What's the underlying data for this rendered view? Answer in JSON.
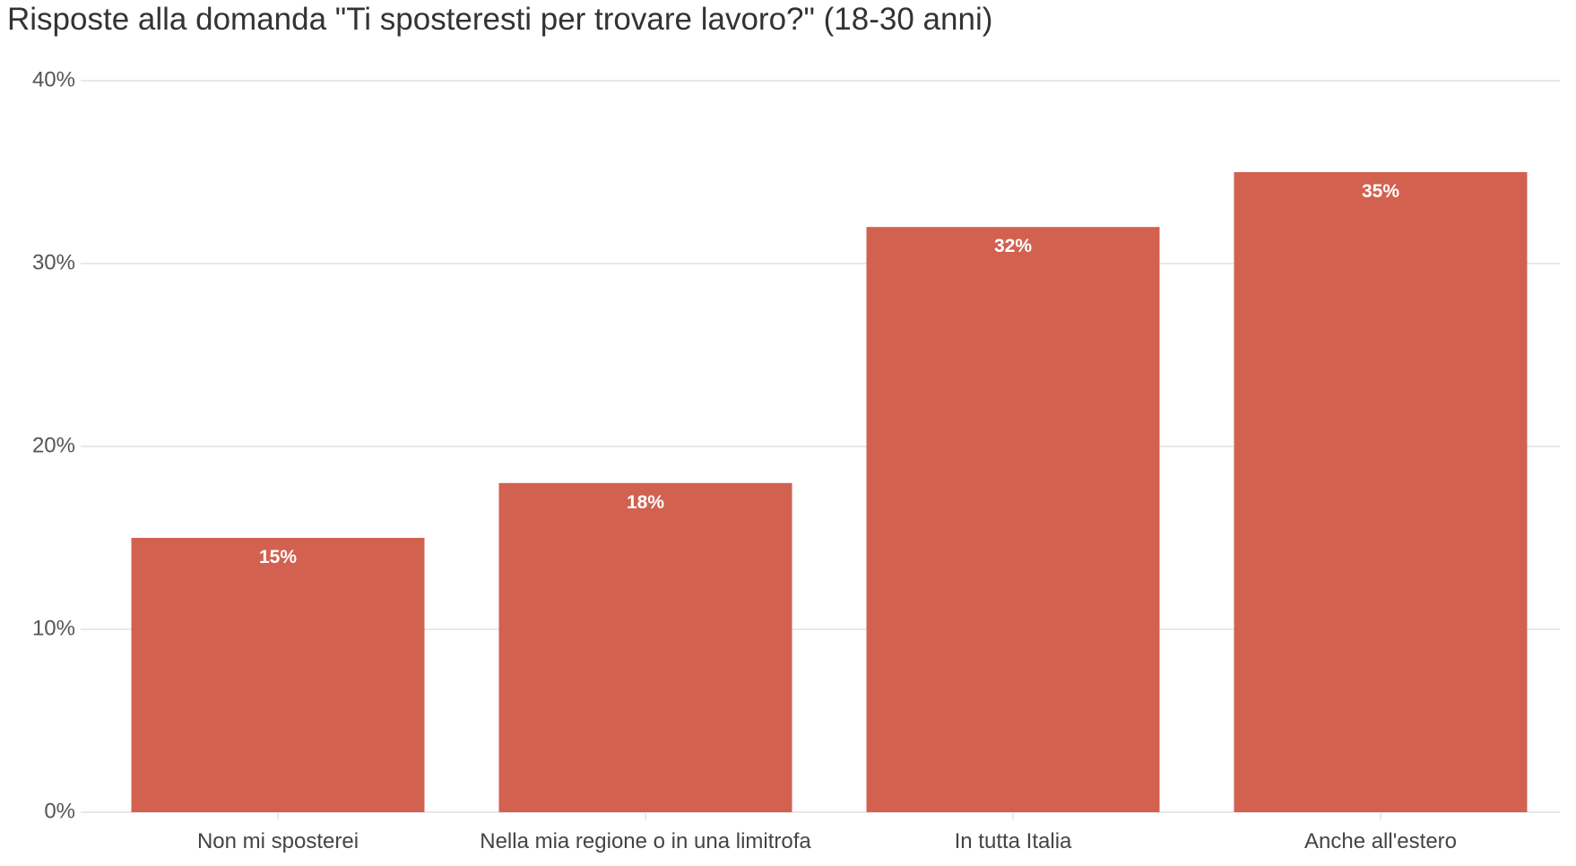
{
  "chart_data": {
    "type": "bar",
    "title": "Risposte alla domanda \"Ti sposteresti per trovare lavoro?\" (18-30 anni)",
    "categories": [
      "Non mi sposterei",
      "Nella mia regione o in una limitrofa",
      "In tutta Italia",
      "Anche all'estero"
    ],
    "values": [
      15,
      18,
      32,
      35
    ],
    "value_labels": [
      "15%",
      "18%",
      "32%",
      "35%"
    ],
    "ylim": [
      0,
      40
    ],
    "yticks": [
      0,
      10,
      20,
      30,
      40
    ],
    "ytick_labels": [
      "0%",
      "10%",
      "20%",
      "30%",
      "40%"
    ],
    "xlabel": "",
    "ylabel": "",
    "grid": true,
    "bar_color": "#D26150",
    "grid_color": "#E8E8E8",
    "text_color": "#444444"
  }
}
